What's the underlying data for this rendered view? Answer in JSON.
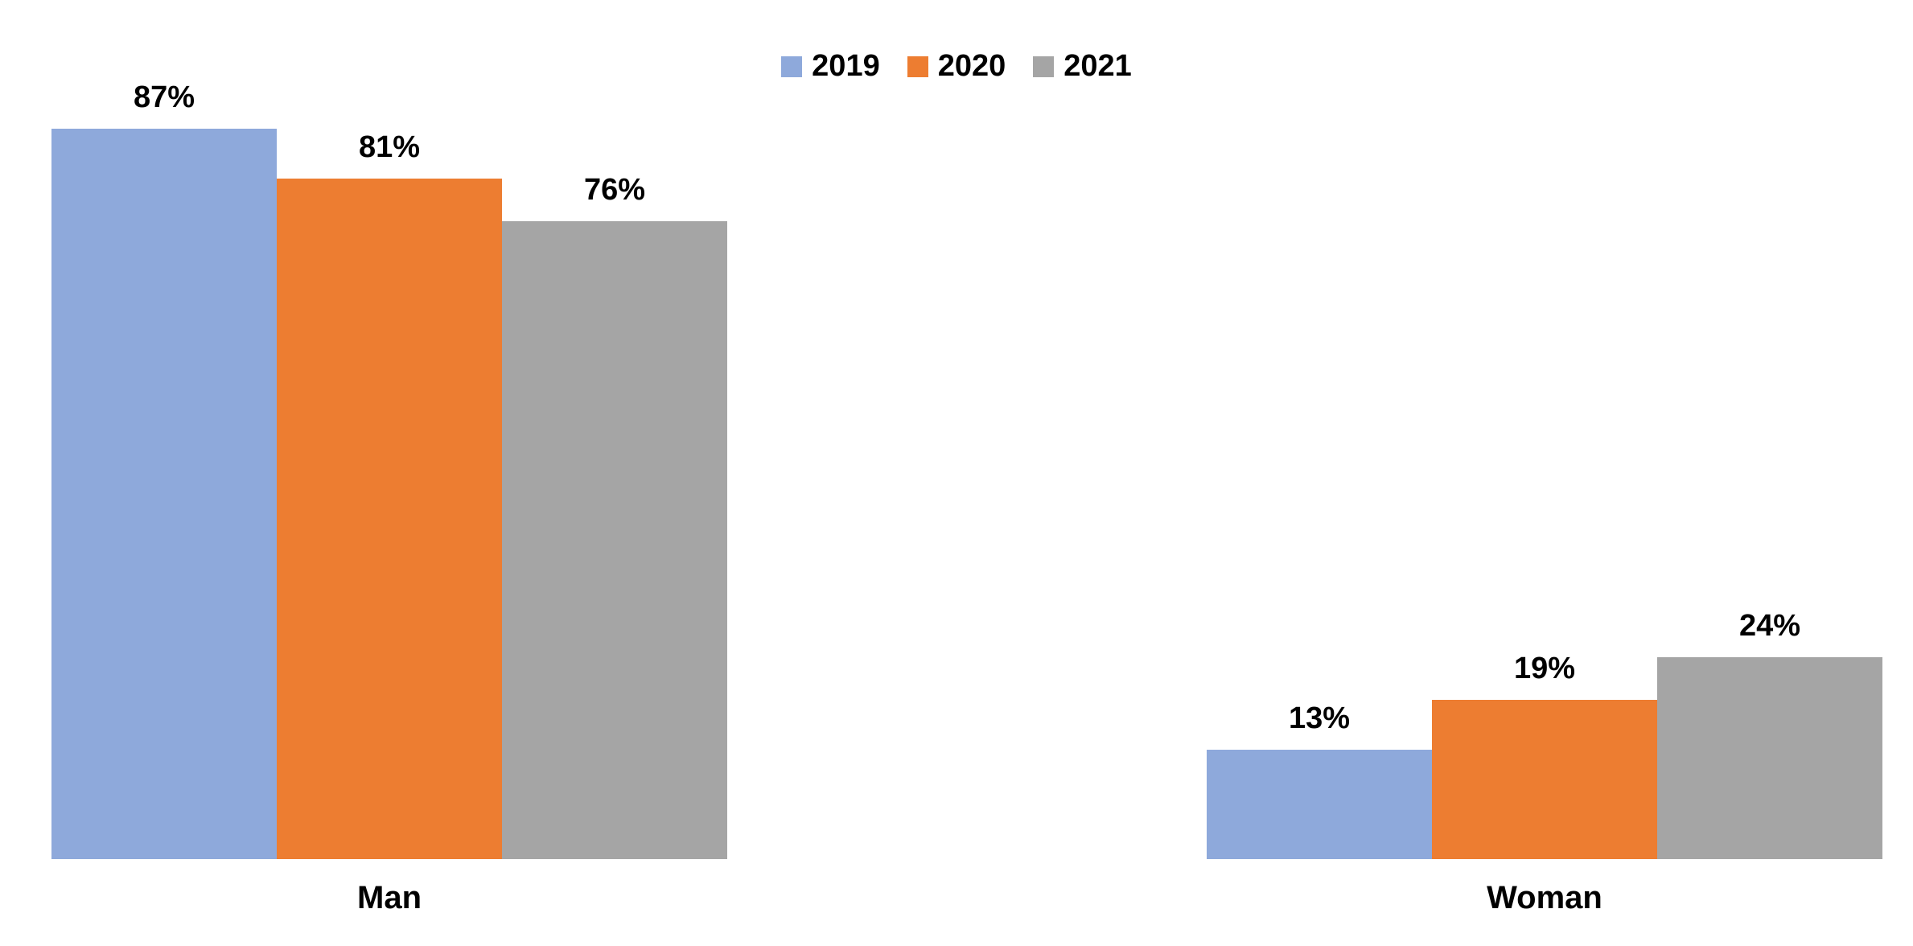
{
  "chart_data": {
    "type": "bar",
    "title": "",
    "xlabel": "",
    "ylabel": "",
    "categories": [
      "Man",
      "Woman"
    ],
    "series": [
      {
        "name": "2019",
        "color": "#8EA9DB",
        "values": [
          87,
          13
        ],
        "labels": [
          "87%",
          "13%"
        ]
      },
      {
        "name": "2020",
        "color": "#ED7D31",
        "values": [
          81,
          19
        ],
        "labels": [
          "81%",
          "19%"
        ]
      },
      {
        "name": "2021",
        "color": "#A5A5A5",
        "values": [
          76,
          24
        ],
        "labels": [
          "76%",
          "24%"
        ]
      }
    ],
    "ylim": [
      0,
      100
    ],
    "value_format": "percent",
    "grid": false,
    "axes_visible": false,
    "legend_position": "top-center",
    "data_labels": "above-bars",
    "text_color": "#000000",
    "background_color": "#FFFFFF"
  }
}
